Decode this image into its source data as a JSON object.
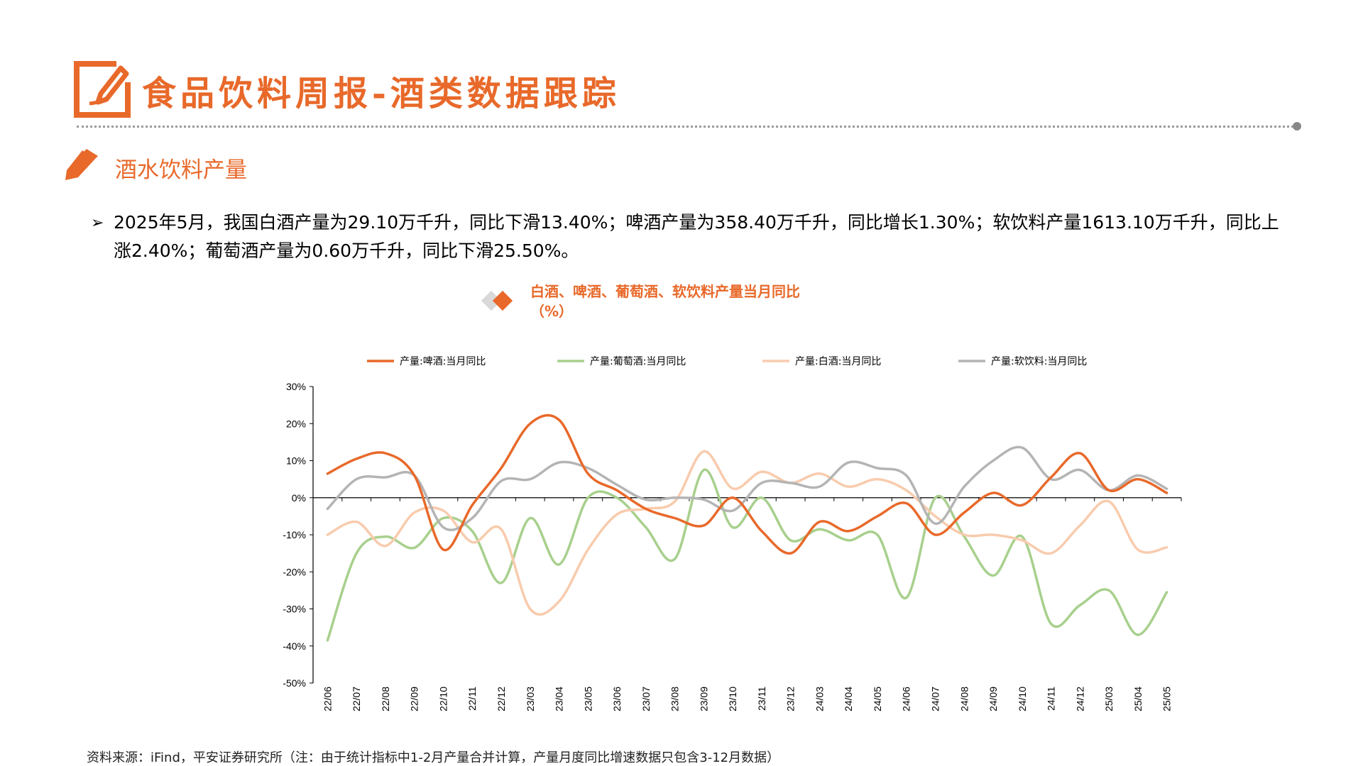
{
  "header": {
    "title": "食品饮料周报-酒类数据跟踪"
  },
  "section": {
    "title": "酒水饮料产量"
  },
  "summary": {
    "bullet": "➢",
    "text": "2025年5月，我国白酒产量为29.10万千升，同比下滑13.40%；啤酒产量为358.40万千升，同比增长1.30%；软饮料产量1613.10万千升，同比上涨2.40%；葡萄酒产量为0.60万千升，同比下滑25.50%。"
  },
  "chart_title": {
    "line1": "白酒、啤酒、葡萄酒、软饮料产量当月同比",
    "line2": "（%）"
  },
  "source": "资料来源：iFind，平安证券研究所（注：由于统计指标中1-2月产量合并计算，产量月度同比增速数据只包含3-12月数据）",
  "colors": {
    "accent": "#E8692A",
    "beer": "#E8692A",
    "wine": "#A8D08D",
    "baijiu": "#F8CBAD",
    "soft": "#B4B4B4"
  },
  "chart_data": {
    "type": "line",
    "title": "白酒、啤酒、葡萄酒、软饮料产量当月同比（%）",
    "xlabel": "",
    "ylabel": "",
    "ylim": [
      -50,
      30
    ],
    "yticks": [
      30,
      20,
      10,
      0,
      -10,
      -20,
      -30,
      -40,
      -50
    ],
    "ytick_labels": [
      "30%",
      "20%",
      "10%",
      "0%",
      "-10%",
      "-20%",
      "-30%",
      "-40%",
      "-50%"
    ],
    "legend_position": "top",
    "categories": [
      "22/06",
      "22/07",
      "22/08",
      "22/09",
      "22/10",
      "22/11",
      "22/12",
      "23/03",
      "23/04",
      "23/05",
      "23/06",
      "23/07",
      "23/08",
      "23/09",
      "23/10",
      "23/11",
      "23/12",
      "24/03",
      "24/04",
      "24/05",
      "24/06",
      "24/07",
      "24/08",
      "24/09",
      "24/10",
      "24/11",
      "24/12",
      "25/03",
      "25/04",
      "25/05"
    ],
    "series": [
      {
        "name": "产量:啤酒:当月同比",
        "color": "#E8692A",
        "values": [
          6.5,
          10.5,
          12,
          6,
          -14,
          -2,
          8,
          20,
          21,
          6.5,
          2,
          -3,
          -5.5,
          -7.5,
          0,
          -9,
          -15,
          -6.5,
          -9,
          -5,
          -1.5,
          -10,
          -4,
          1.3,
          -2,
          5.5,
          12,
          2,
          5,
          1.3
        ]
      },
      {
        "name": "产量:葡萄酒:当月同比",
        "color": "#A8D08D",
        "values": [
          -38.5,
          -15,
          -10.5,
          -13.5,
          -5.5,
          -9,
          -23,
          -5.5,
          -18,
          0,
          0,
          -8,
          -16.5,
          7.5,
          -8,
          0,
          -11.5,
          -8.5,
          -11.5,
          -10,
          -27,
          0,
          -10.5,
          -21,
          -10.5,
          -34,
          -29,
          -25,
          -37,
          -25.5
        ]
      },
      {
        "name": "产量:白酒:当月同比",
        "color": "#F8CBAD",
        "values": [
          -10,
          -6.5,
          -13,
          -4,
          -3.5,
          -12,
          -8.5,
          -30,
          -28,
          -14,
          -4.5,
          -3,
          -1,
          12.5,
          2.5,
          7,
          4,
          6.5,
          3,
          5,
          2,
          -5,
          -10,
          -10,
          -11.5,
          -15,
          -7.5,
          -1,
          -14,
          -13.4
        ]
      },
      {
        "name": "产量:软饮料:当月同比",
        "color": "#B4B4B4",
        "values": [
          -3,
          5,
          5.5,
          6,
          -8,
          -5.5,
          4.5,
          5,
          9.5,
          8,
          3.5,
          -0.5,
          0,
          -0.5,
          -3.5,
          4,
          4,
          3,
          9.5,
          8,
          6,
          -7,
          3,
          10,
          13.5,
          5,
          7.5,
          2,
          6,
          2.4
        ]
      }
    ]
  }
}
